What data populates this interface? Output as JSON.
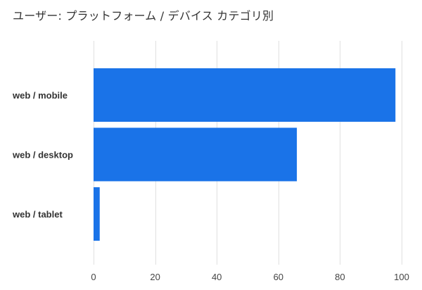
{
  "chart_data": {
    "type": "bar",
    "orientation": "horizontal",
    "title": "ユーザー: プラットフォーム / デバイス カテゴリ別",
    "categories": [
      "web / mobile",
      "web / desktop",
      "web / tablet"
    ],
    "values": [
      98,
      66,
      2
    ],
    "x_ticks": [
      0,
      20,
      40,
      60,
      80,
      100
    ],
    "xlim": [
      0,
      100
    ],
    "grid": true,
    "bar_color": "#1a73e8",
    "grid_color": "#e0e0e0"
  }
}
